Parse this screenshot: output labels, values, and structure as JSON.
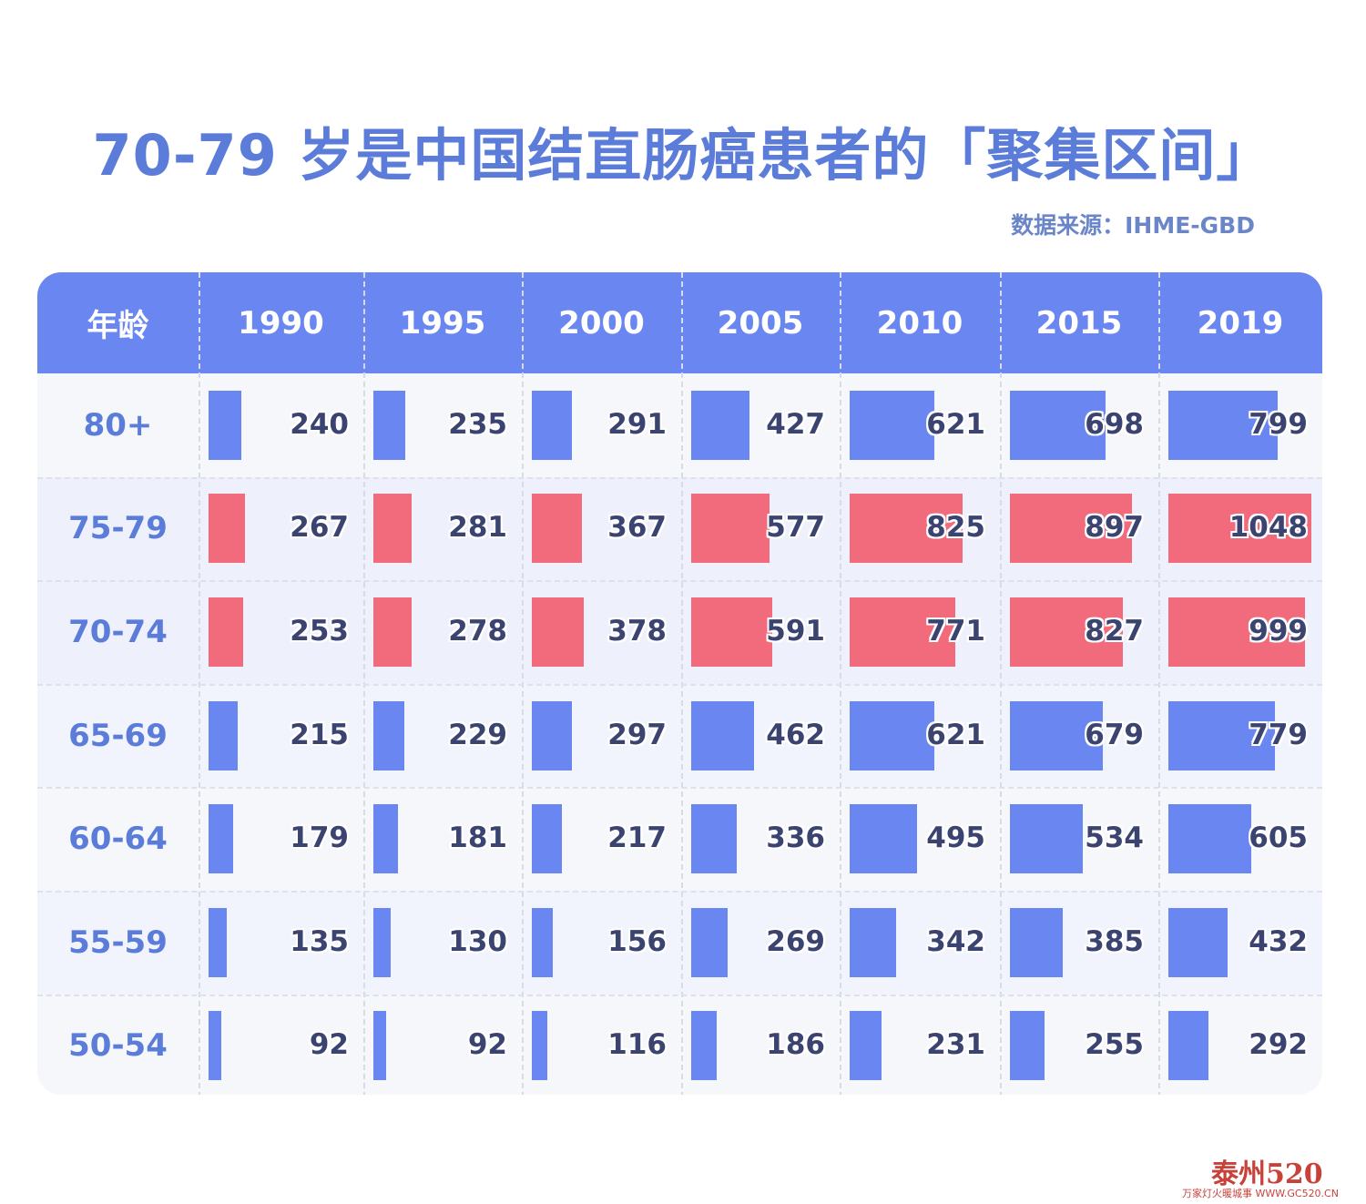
{
  "title": "70-79 岁是中国结直肠癌患者的「聚集区间」",
  "source": "数据来源：IHME-GBD",
  "colors": {
    "header_bg": "#6a86f0",
    "blue_bar": "#6a86f0",
    "red_bar": "#f26b7c",
    "title": "#5b7dd9"
  },
  "chart_data": {
    "type": "table",
    "corner_label": "年龄",
    "columns": [
      "1990",
      "1995",
      "2000",
      "2005",
      "2010",
      "2015",
      "2019"
    ],
    "rows": [
      {
        "label": "80+",
        "highlight": false,
        "values": [
          240,
          235,
          291,
          427,
          621,
          698,
          799
        ]
      },
      {
        "label": "75-79",
        "highlight": true,
        "values": [
          267,
          281,
          367,
          577,
          825,
          897,
          1048
        ]
      },
      {
        "label": "70-74",
        "highlight": true,
        "values": [
          253,
          278,
          378,
          591,
          771,
          827,
          999
        ]
      },
      {
        "label": "65-69",
        "highlight": false,
        "values": [
          215,
          229,
          297,
          462,
          621,
          679,
          779
        ]
      },
      {
        "label": "60-64",
        "highlight": false,
        "values": [
          179,
          181,
          217,
          336,
          495,
          534,
          605
        ]
      },
      {
        "label": "55-59",
        "highlight": false,
        "values": [
          135,
          130,
          156,
          269,
          342,
          385,
          432
        ]
      },
      {
        "label": "50-54",
        "highlight": false,
        "values": [
          92,
          92,
          116,
          186,
          231,
          255,
          292
        ]
      }
    ],
    "value_max": 1048
  },
  "watermark": {
    "main": "泰州520",
    "sub": "万家灯火暖城事 WWW.GC520.CN"
  }
}
